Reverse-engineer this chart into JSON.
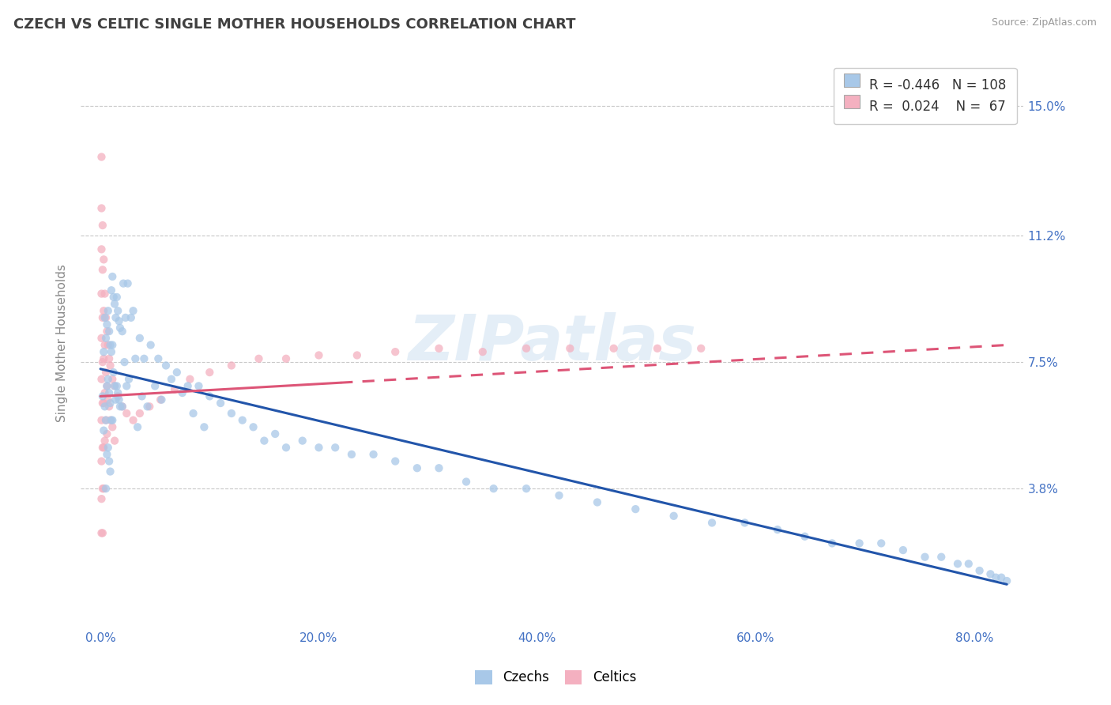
{
  "title": "CZECH VS CELTIC SINGLE MOTHER HOUSEHOLDS CORRELATION CHART",
  "source": "Source: ZipAtlas.com",
  "ylabel": "Single Mother Households",
  "watermark": "ZIPatlas",
  "background_color": "#ffffff",
  "grid_color": "#c8c8c8",
  "title_color": "#404040",
  "source_color": "#999999",
  "axis_tick_color": "#4472c4",
  "ylabel_color": "#888888",
  "ytick_labels": [
    "3.8%",
    "7.5%",
    "11.2%",
    "15.0%"
  ],
  "ytick_values": [
    0.038,
    0.075,
    0.112,
    0.15
  ],
  "xtick_labels": [
    "0.0%",
    "20.0%",
    "40.0%",
    "60.0%",
    "80.0%"
  ],
  "xtick_values": [
    0.0,
    0.2,
    0.4,
    0.6,
    0.8
  ],
  "xlim": [
    -0.018,
    0.845
  ],
  "ylim": [
    -0.002,
    0.163
  ],
  "legend_R_czech": "-0.446",
  "legend_N_czech": "108",
  "legend_R_celtic": "0.024",
  "legend_N_celtic": "67",
  "scatter_color_czech": "#a8c8e8",
  "scatter_color_celtic": "#f4b0c0",
  "trend_color_czech": "#2255aa",
  "trend_color_celtic": "#dd5577",
  "scatter_size": 55,
  "scatter_alpha": 0.75,
  "czechs_x": [
    0.002,
    0.003,
    0.003,
    0.004,
    0.004,
    0.005,
    0.005,
    0.005,
    0.006,
    0.006,
    0.006,
    0.007,
    0.007,
    0.007,
    0.008,
    0.008,
    0.008,
    0.009,
    0.009,
    0.009,
    0.01,
    0.01,
    0.01,
    0.011,
    0.011,
    0.011,
    0.012,
    0.012,
    0.013,
    0.013,
    0.014,
    0.014,
    0.015,
    0.015,
    0.016,
    0.016,
    0.017,
    0.017,
    0.018,
    0.018,
    0.02,
    0.02,
    0.021,
    0.022,
    0.023,
    0.024,
    0.025,
    0.026,
    0.028,
    0.03,
    0.032,
    0.034,
    0.036,
    0.038,
    0.04,
    0.043,
    0.046,
    0.05,
    0.053,
    0.056,
    0.06,
    0.065,
    0.07,
    0.075,
    0.08,
    0.085,
    0.09,
    0.095,
    0.1,
    0.11,
    0.12,
    0.13,
    0.14,
    0.15,
    0.16,
    0.17,
    0.185,
    0.2,
    0.215,
    0.23,
    0.25,
    0.27,
    0.29,
    0.31,
    0.335,
    0.36,
    0.39,
    0.42,
    0.455,
    0.49,
    0.525,
    0.56,
    0.59,
    0.62,
    0.645,
    0.67,
    0.695,
    0.715,
    0.735,
    0.755,
    0.77,
    0.785,
    0.795,
    0.805,
    0.815,
    0.82,
    0.825,
    0.83
  ],
  "czechs_y": [
    0.065,
    0.078,
    0.055,
    0.088,
    0.062,
    0.082,
    0.058,
    0.038,
    0.086,
    0.068,
    0.048,
    0.09,
    0.07,
    0.05,
    0.084,
    0.066,
    0.046,
    0.08,
    0.063,
    0.043,
    0.096,
    0.078,
    0.058,
    0.1,
    0.08,
    0.058,
    0.094,
    0.072,
    0.092,
    0.068,
    0.088,
    0.064,
    0.094,
    0.068,
    0.09,
    0.066,
    0.087,
    0.064,
    0.085,
    0.062,
    0.084,
    0.062,
    0.098,
    0.075,
    0.088,
    0.068,
    0.098,
    0.07,
    0.088,
    0.09,
    0.076,
    0.056,
    0.082,
    0.065,
    0.076,
    0.062,
    0.08,
    0.068,
    0.076,
    0.064,
    0.074,
    0.07,
    0.072,
    0.066,
    0.068,
    0.06,
    0.068,
    0.056,
    0.065,
    0.063,
    0.06,
    0.058,
    0.056,
    0.052,
    0.054,
    0.05,
    0.052,
    0.05,
    0.05,
    0.048,
    0.048,
    0.046,
    0.044,
    0.044,
    0.04,
    0.038,
    0.038,
    0.036,
    0.034,
    0.032,
    0.03,
    0.028,
    0.028,
    0.026,
    0.024,
    0.022,
    0.022,
    0.022,
    0.02,
    0.018,
    0.018,
    0.016,
    0.016,
    0.014,
    0.013,
    0.012,
    0.012,
    0.011
  ],
  "celtics_x": [
    0.001,
    0.001,
    0.001,
    0.001,
    0.001,
    0.001,
    0.001,
    0.001,
    0.001,
    0.001,
    0.002,
    0.002,
    0.002,
    0.002,
    0.002,
    0.002,
    0.002,
    0.002,
    0.003,
    0.003,
    0.003,
    0.003,
    0.003,
    0.003,
    0.004,
    0.004,
    0.004,
    0.004,
    0.005,
    0.005,
    0.005,
    0.006,
    0.006,
    0.006,
    0.007,
    0.007,
    0.008,
    0.008,
    0.009,
    0.009,
    0.011,
    0.011,
    0.013,
    0.013,
    0.016,
    0.02,
    0.024,
    0.03,
    0.036,
    0.045,
    0.055,
    0.068,
    0.082,
    0.1,
    0.12,
    0.145,
    0.17,
    0.2,
    0.235,
    0.27,
    0.31,
    0.35,
    0.39,
    0.43,
    0.47,
    0.51,
    0.55
  ],
  "celtics_y": [
    0.135,
    0.12,
    0.108,
    0.095,
    0.082,
    0.07,
    0.058,
    0.046,
    0.035,
    0.025,
    0.115,
    0.102,
    0.088,
    0.075,
    0.063,
    0.05,
    0.038,
    0.025,
    0.105,
    0.09,
    0.076,
    0.063,
    0.05,
    0.038,
    0.095,
    0.08,
    0.066,
    0.052,
    0.088,
    0.072,
    0.058,
    0.084,
    0.068,
    0.054,
    0.08,
    0.064,
    0.076,
    0.062,
    0.074,
    0.058,
    0.07,
    0.056,
    0.068,
    0.052,
    0.065,
    0.062,
    0.06,
    0.058,
    0.06,
    0.062,
    0.064,
    0.067,
    0.07,
    0.072,
    0.074,
    0.076,
    0.076,
    0.077,
    0.077,
    0.078,
    0.079,
    0.078,
    0.079,
    0.079,
    0.079,
    0.079,
    0.079
  ],
  "trend_czech_x0": 0.0,
  "trend_czech_x1": 0.83,
  "trend_czech_y0": 0.073,
  "trend_czech_y1": 0.01,
  "trend_celtic_solid_x0": 0.0,
  "trend_celtic_solid_x1": 0.22,
  "trend_celtic_dash_x0": 0.22,
  "trend_celtic_dash_x1": 0.83,
  "trend_celtic_y0": 0.065,
  "trend_celtic_y1": 0.08
}
